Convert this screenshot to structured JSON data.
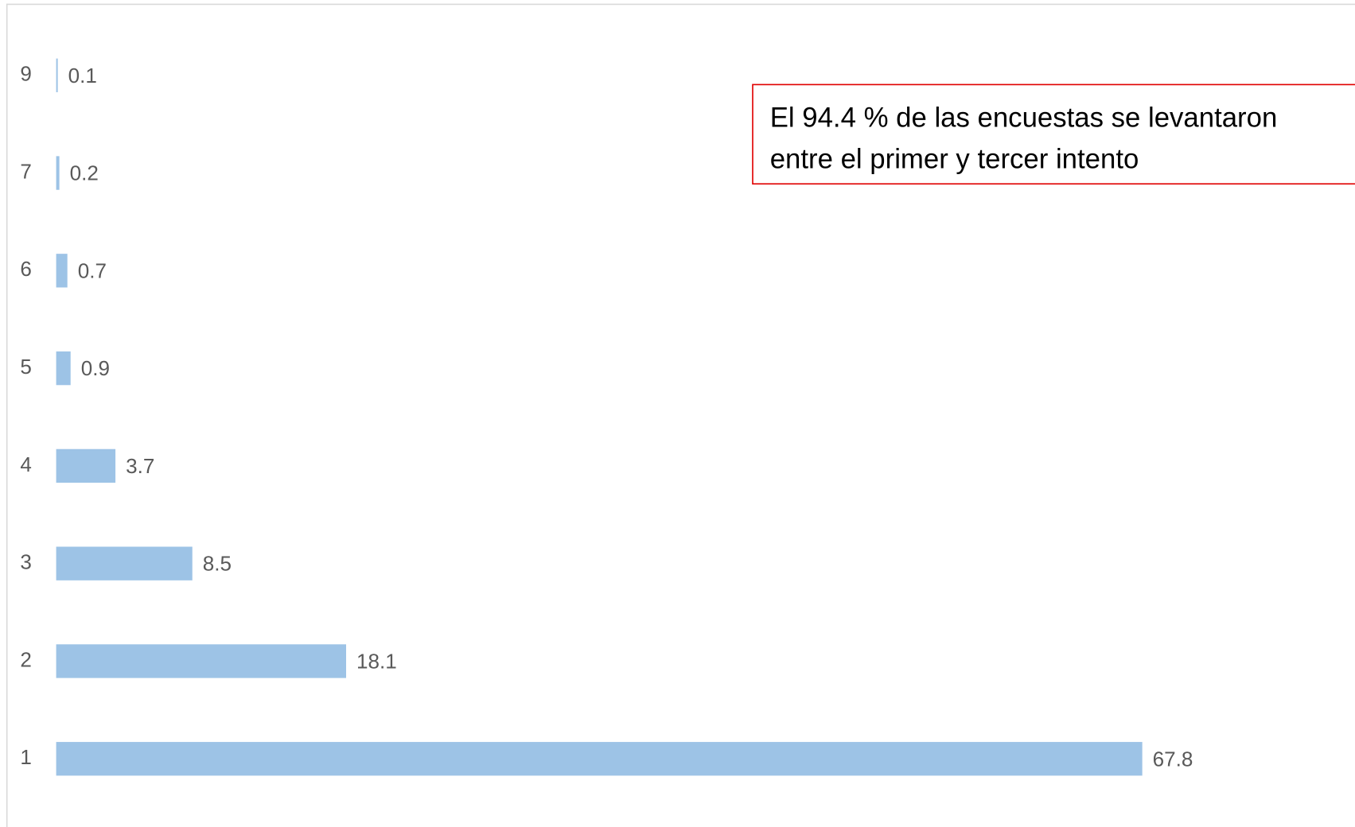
{
  "chart_data": {
    "type": "barh",
    "categories": [
      "1",
      "2",
      "3",
      "4",
      "5",
      "6",
      "7",
      "9"
    ],
    "values": [
      67.8,
      18.1,
      8.5,
      3.7,
      0.9,
      0.7,
      0.2,
      0.1
    ],
    "color": "#9dc3e6",
    "xlim": [
      0,
      80
    ],
    "annotation": "El 94.4 % de las encuestas se levantaron entre el primer y tercer intento",
    "annotation_border_color": "#e00000"
  }
}
